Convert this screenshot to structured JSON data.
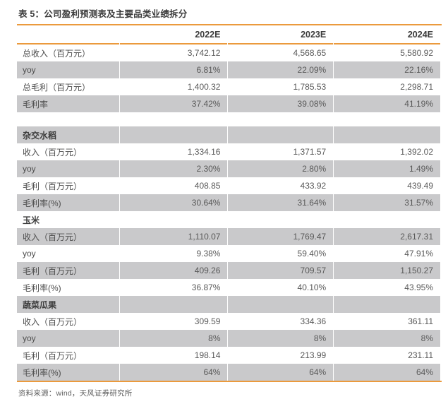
{
  "title": "表 5：公司盈利预测表及主要品类业绩拆分",
  "source": "资料来源：wind，天风证券研究所",
  "colors": {
    "accent": "#EB9A3D",
    "stripe": "#C9C9CB",
    "title_text": "#3C3C3C",
    "body_text": "#555555"
  },
  "columns": [
    "2022E",
    "2023E",
    "2024E"
  ],
  "rows": [
    {
      "type": "data",
      "shade": false,
      "label": "总收入（百万元）",
      "values": [
        "3,742.12",
        "4,568.65",
        "5,580.92"
      ]
    },
    {
      "type": "data",
      "shade": true,
      "label": "yoy",
      "values": [
        "6.81%",
        "22.09%",
        "22.16%"
      ]
    },
    {
      "type": "data",
      "shade": false,
      "label": "总毛利（百万元）",
      "values": [
        "1,400.32",
        "1,785.53",
        "2,298.71"
      ]
    },
    {
      "type": "data",
      "shade": true,
      "label": "毛利率",
      "values": [
        "37.42%",
        "39.08%",
        "41.19%"
      ]
    },
    {
      "type": "spacer"
    },
    {
      "type": "section",
      "shade": true,
      "label": "杂交水稻"
    },
    {
      "type": "data",
      "shade": false,
      "label": "收入（百万元）",
      "values": [
        "1,334.16",
        "1,371.57",
        "1,392.02"
      ]
    },
    {
      "type": "data",
      "shade": true,
      "label": "yoy",
      "values": [
        "2.30%",
        "2.80%",
        "1.49%"
      ]
    },
    {
      "type": "data",
      "shade": false,
      "label": "毛利（百万元）",
      "values": [
        "408.85",
        "433.92",
        "439.49"
      ]
    },
    {
      "type": "data",
      "shade": true,
      "label": "毛利率(%)",
      "values": [
        "30.64%",
        "31.64%",
        "31.57%"
      ]
    },
    {
      "type": "section",
      "shade": false,
      "label": "玉米"
    },
    {
      "type": "data",
      "shade": true,
      "label": "收入（百万元）",
      "values": [
        "1,110.07",
        "1,769.47",
        "2,617.31"
      ]
    },
    {
      "type": "data",
      "shade": false,
      "label": "yoy",
      "values": [
        "9.38%",
        "59.40%",
        "47.91%"
      ]
    },
    {
      "type": "data",
      "shade": true,
      "label": "毛利（百万元）",
      "values": [
        "409.26",
        "709.57",
        "1,150.27"
      ]
    },
    {
      "type": "data",
      "shade": false,
      "label": "毛利率(%)",
      "values": [
        "36.87%",
        "40.10%",
        "43.95%"
      ]
    },
    {
      "type": "section",
      "shade": true,
      "label": "蔬菜瓜果"
    },
    {
      "type": "data",
      "shade": false,
      "label": "收入（百万元）",
      "values": [
        "309.59",
        "334.36",
        "361.11"
      ]
    },
    {
      "type": "data",
      "shade": true,
      "label": "yoy",
      "values": [
        "8%",
        "8%",
        "8%"
      ]
    },
    {
      "type": "data",
      "shade": false,
      "label": "毛利（百万元）",
      "values": [
        "198.14",
        "213.99",
        "231.11"
      ]
    },
    {
      "type": "data",
      "shade": true,
      "label": "毛利率(%)",
      "values": [
        "64%",
        "64%",
        "64%"
      ]
    }
  ]
}
